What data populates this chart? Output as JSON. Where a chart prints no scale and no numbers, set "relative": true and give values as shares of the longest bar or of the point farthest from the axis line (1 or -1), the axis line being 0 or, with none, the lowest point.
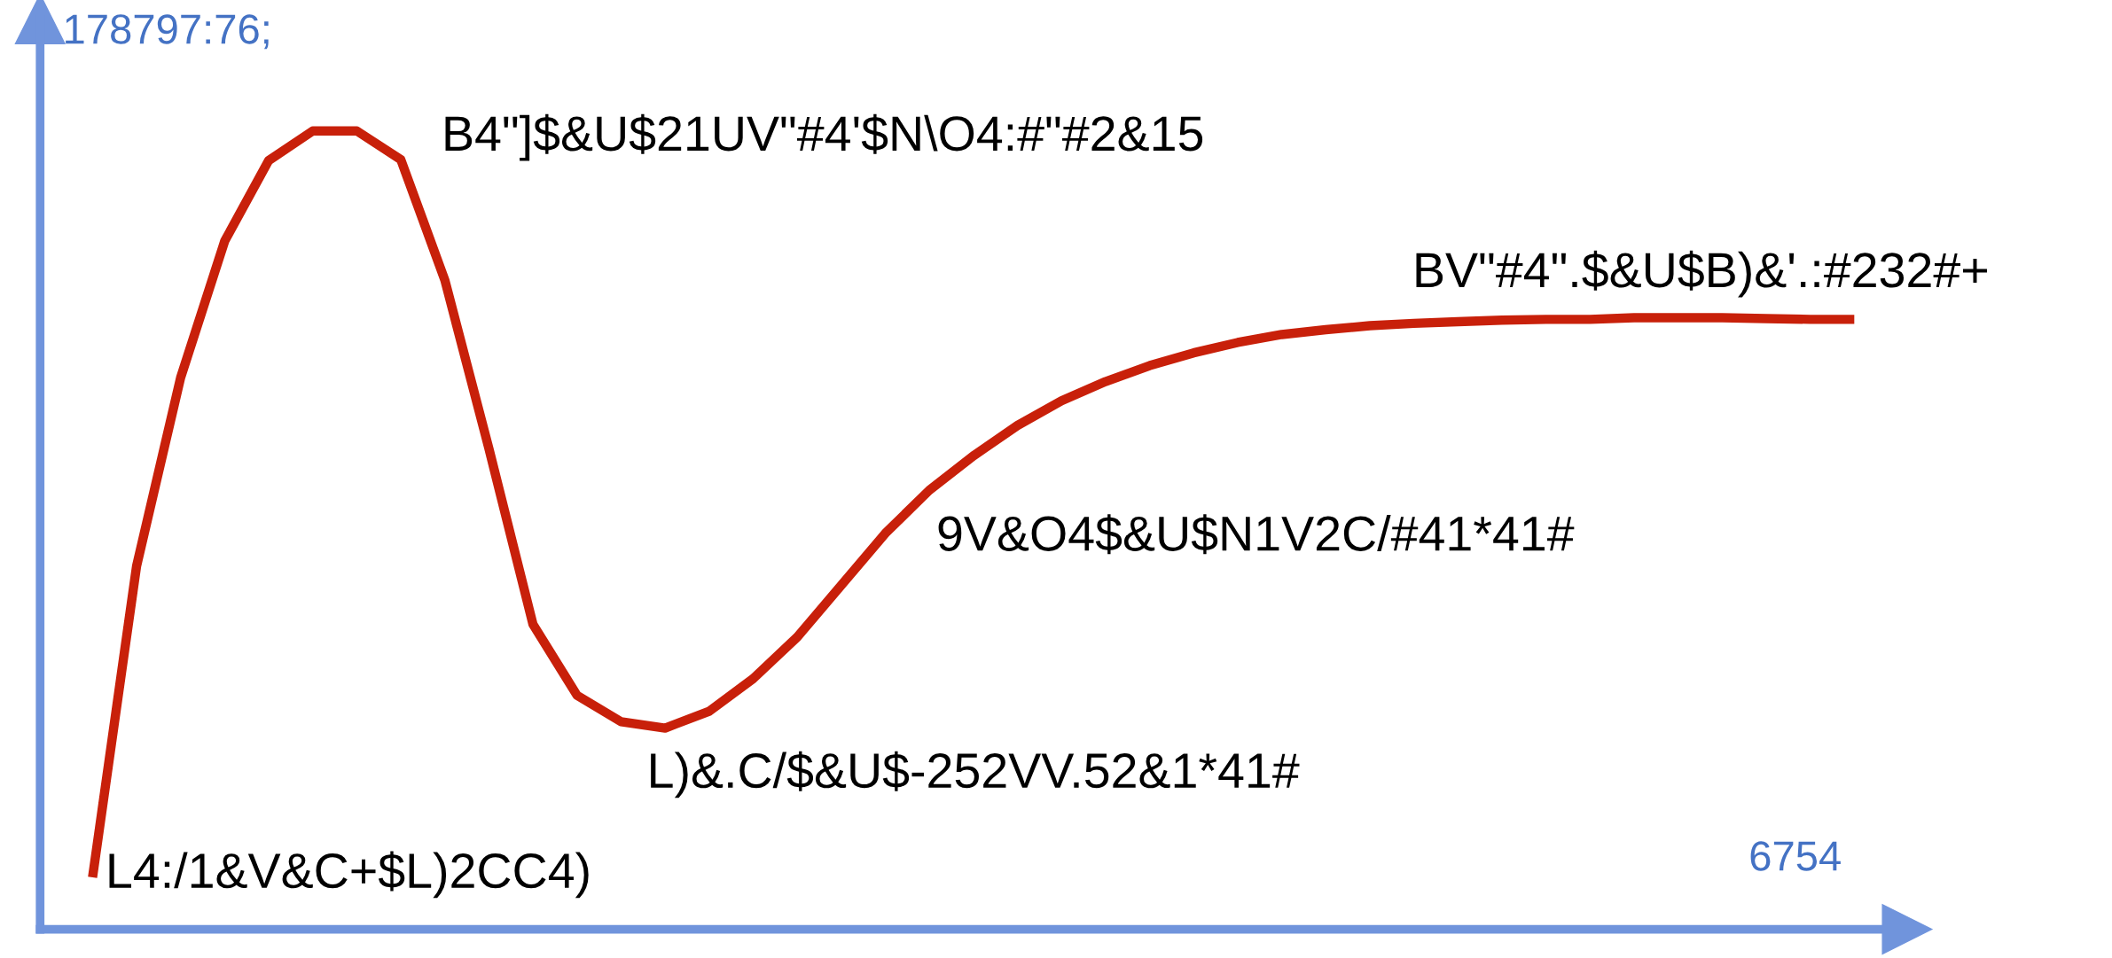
{
  "chart_data": {
    "type": "line",
    "relative": true,
    "xlabel": "6754",
    "ylabel": "178797:76;",
    "categories": [
      null,
      null,
      null,
      null,
      null,
      null,
      null,
      null,
      null,
      null,
      null,
      null,
      null,
      null,
      null,
      null,
      null,
      null,
      null,
      null,
      null,
      null,
      null,
      null,
      null,
      null,
      null,
      null,
      null,
      null,
      null,
      null,
      null,
      null,
      null,
      null,
      null,
      null,
      null,
      null,
      null
    ],
    "series": [
      {
        "color": "#c8200a",
        "values": [
          0.065,
          0.455,
          0.691,
          0.862,
          0.963,
          1.0,
          1.0,
          0.964,
          0.813,
          0.602,
          0.382,
          0.293,
          0.26,
          0.252,
          0.273,
          0.314,
          0.366,
          0.431,
          0.496,
          0.55,
          0.593,
          0.631,
          0.662,
          0.686,
          0.706,
          0.722,
          0.735,
          0.745,
          0.751,
          0.756,
          0.759,
          0.761,
          0.763,
          0.764,
          0.764,
          0.766,
          0.766,
          0.766,
          0.765,
          0.764,
          0.764
        ]
      }
    ],
    "annotations": [
      "B4\"]$&U$21UV\"#4'$N\\O4:#\"#2&15",
      "BV\"#4\".$&U$B)&'.:#232#+",
      "9V&O4$&U$N1V2C/#41*41#",
      "L)&.C/$&U$-252VV.52&1*41#",
      "L4:/1&V&C+$L)2CC4)"
    ],
    "legend": false,
    "marker": "none",
    "line_style": "solid"
  }
}
